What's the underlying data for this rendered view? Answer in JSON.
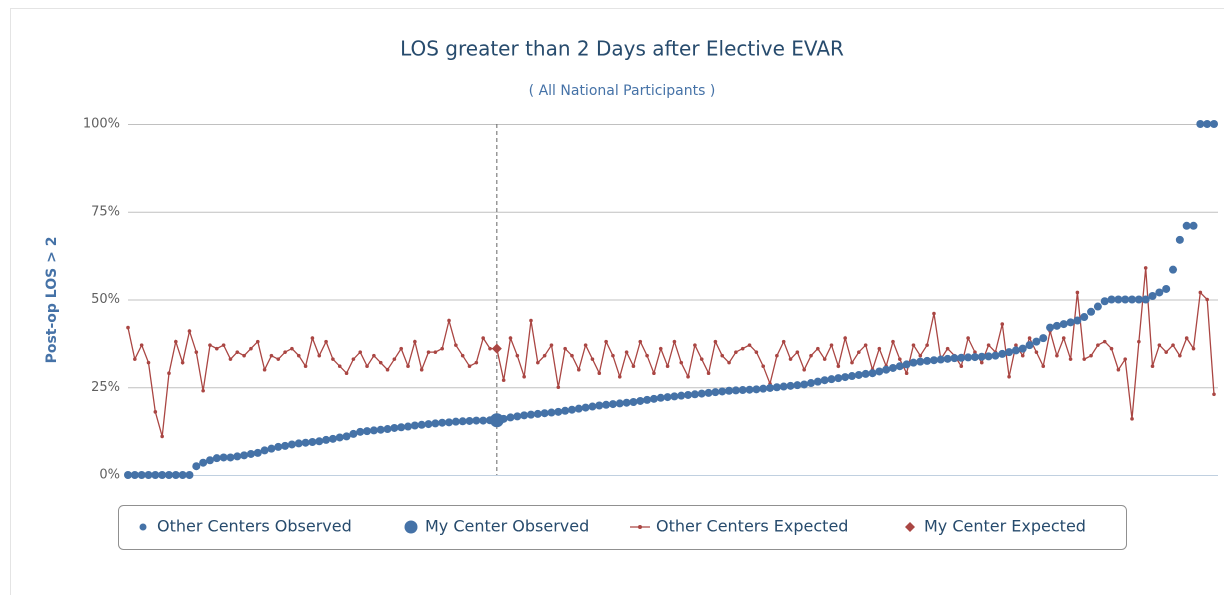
{
  "chart_data": {
    "type": "scatter-line",
    "title": "LOS greater than 2 Days after Elective EVAR",
    "subtitle": "( All National Participants )",
    "y_axis_label": "Post-op LOS > 2",
    "categories": [
      null,
      null,
      null,
      null,
      null,
      null,
      null,
      null,
      null,
      null,
      null,
      null,
      null,
      null,
      null,
      null,
      null,
      null,
      null,
      null,
      null,
      null,
      null,
      null,
      null,
      null,
      null,
      null,
      null,
      null,
      null,
      null,
      null,
      null,
      null,
      null,
      null,
      null,
      null,
      null,
      null,
      null,
      null,
      null,
      null,
      null,
      null,
      null,
      null,
      null,
      null,
      null,
      null,
      null,
      null,
      null,
      null,
      null,
      null,
      null,
      null,
      null,
      null,
      null,
      null,
      null,
      null,
      null,
      null,
      null,
      null,
      null,
      null,
      null,
      null,
      null,
      null,
      null,
      null,
      null,
      null,
      null,
      null,
      null,
      null,
      null,
      null,
      null,
      null,
      null,
      null,
      null,
      null,
      null,
      null,
      null,
      null,
      null,
      null,
      null,
      null,
      null,
      null,
      null,
      null,
      null,
      null,
      null,
      null,
      null,
      null,
      null,
      null,
      null,
      null,
      null,
      null,
      null,
      null,
      null,
      null,
      null,
      null,
      null,
      null,
      null,
      null,
      null,
      null,
      null,
      null,
      null,
      null,
      null,
      null,
      null,
      null,
      null,
      null,
      null,
      null,
      null,
      null,
      null,
      null,
      null,
      null,
      null,
      null,
      null,
      null,
      null,
      null,
      null,
      null,
      null,
      null,
      null,
      null,
      null
    ],
    "ylim": [
      0,
      100
    ],
    "yticks": [
      {
        "value": 0,
        "label": "0%"
      },
      {
        "value": 25,
        "label": "25%"
      },
      {
        "value": 50,
        "label": "50%"
      },
      {
        "value": 75,
        "label": "75%"
      },
      {
        "value": 100,
        "label": "100%"
      }
    ],
    "grid": true,
    "legend": "bottom",
    "series": [
      {
        "name": "Other Centers Observed",
        "kind": "dots",
        "color": "#4572a7",
        "values": [
          0,
          0,
          0,
          0,
          0,
          0,
          0,
          0,
          0,
          0,
          2.5,
          3.5,
          4.2,
          4.8,
          5,
          5,
          5.3,
          5.6,
          6,
          6.3,
          7,
          7.5,
          8,
          8.3,
          8.7,
          9,
          9.2,
          9.4,
          9.6,
          10,
          10.3,
          10.7,
          11,
          11.7,
          12.3,
          12.5,
          12.7,
          12.9,
          13.1,
          13.4,
          13.6,
          13.8,
          14.1,
          14.3,
          14.5,
          14.7,
          14.9,
          15,
          15.2,
          15.3,
          15.4,
          15.5,
          15.5,
          15.6,
          null,
          16,
          16.4,
          16.7,
          17,
          17.2,
          17.4,
          17.6,
          17.8,
          18,
          18.3,
          18.6,
          18.9,
          19.2,
          19.5,
          19.8,
          20,
          20.2,
          20.4,
          20.6,
          20.8,
          21.1,
          21.4,
          21.7,
          22,
          22.2,
          22.4,
          22.6,
          22.8,
          23,
          23.2,
          23.4,
          23.6,
          23.8,
          24,
          24.1,
          24.2,
          24.3,
          24.4,
          24.6,
          24.8,
          25,
          25.2,
          25.4,
          25.6,
          25.8,
          26.2,
          26.6,
          27,
          27.3,
          27.6,
          27.9,
          28.2,
          28.5,
          28.8,
          29,
          29.5,
          30,
          30.5,
          31,
          31.5,
          32,
          32.3,
          32.5,
          32.7,
          32.9,
          33.1,
          33.3,
          33.4,
          33.5,
          33.6,
          33.7,
          33.8,
          34,
          34.5,
          35,
          35.5,
          36,
          37,
          38,
          39,
          42,
          42.5,
          43,
          43.5,
          44,
          45,
          46.5,
          48,
          49.5,
          50,
          50,
          50,
          50,
          50,
          50,
          51,
          52,
          53,
          58.5,
          67,
          71,
          71,
          100,
          100,
          100
        ]
      },
      {
        "name": "My Center Observed",
        "kind": "bigdot",
        "color": "#4572a7",
        "values": [
          null,
          null,
          null,
          null,
          null,
          null,
          null,
          null,
          null,
          null,
          null,
          null,
          null,
          null,
          null,
          null,
          null,
          null,
          null,
          null,
          null,
          null,
          null,
          null,
          null,
          null,
          null,
          null,
          null,
          null,
          null,
          null,
          null,
          null,
          null,
          null,
          null,
          null,
          null,
          null,
          null,
          null,
          null,
          null,
          null,
          null,
          null,
          null,
          null,
          null,
          null,
          null,
          null,
          null,
          15.6,
          null,
          null,
          null,
          null,
          null,
          null,
          null,
          null,
          null,
          null,
          null,
          null,
          null,
          null,
          null,
          null,
          null,
          null,
          null,
          null,
          null,
          null,
          null,
          null,
          null,
          null,
          null,
          null,
          null,
          null,
          null,
          null,
          null,
          null,
          null,
          null,
          null,
          null,
          null,
          null,
          null,
          null,
          null,
          null,
          null,
          null,
          null,
          null,
          null,
          null,
          null,
          null,
          null,
          null,
          null,
          null,
          null,
          null,
          null,
          null,
          null,
          null,
          null,
          null,
          null,
          null,
          null,
          null,
          null,
          null,
          null,
          null,
          null,
          null,
          null,
          null,
          null,
          null,
          null,
          null,
          null,
          null,
          null,
          null,
          null,
          null,
          null,
          null,
          null,
          null,
          null,
          null,
          null,
          null,
          null,
          null,
          null,
          null,
          null,
          null,
          null,
          null,
          null,
          null,
          null
        ]
      },
      {
        "name": "Other Centers Expected",
        "kind": "line",
        "color": "#aa4643",
        "values": [
          42,
          33,
          37,
          32,
          18,
          11,
          29,
          38,
          32,
          41,
          35,
          24,
          37,
          36,
          37,
          33,
          35,
          34,
          36,
          38,
          30,
          34,
          33,
          35,
          36,
          34,
          31,
          39,
          34,
          38,
          33,
          31,
          29,
          33,
          35,
          31,
          34,
          32,
          30,
          33,
          36,
          31,
          38,
          30,
          35,
          35,
          36,
          44,
          37,
          34,
          31,
          32,
          39,
          36,
          36,
          27,
          39,
          34,
          28,
          44,
          32,
          34,
          37,
          25,
          36,
          34,
          30,
          37,
          33,
          29,
          38,
          34,
          28,
          35,
          31,
          38,
          34,
          29,
          36,
          31,
          38,
          32,
          28,
          37,
          33,
          29,
          38,
          34,
          32,
          35,
          36,
          37,
          35,
          31,
          26,
          34,
          38,
          33,
          35,
          30,
          34,
          36,
          33,
          37,
          31,
          39,
          32,
          35,
          37,
          30,
          36,
          31,
          38,
          33,
          29,
          37,
          34,
          37,
          46,
          33,
          36,
          34,
          31,
          39,
          35,
          32,
          37,
          35,
          43,
          28,
          37,
          34,
          39,
          35,
          31,
          41,
          34,
          39,
          33,
          52,
          33,
          34,
          37,
          38,
          36,
          30,
          33,
          16,
          38,
          59,
          31,
          37,
          35,
          37,
          34,
          39,
          36,
          52,
          50,
          23
        ]
      },
      {
        "name": "My Center Expected",
        "kind": "diamond",
        "color": "#aa4643",
        "values": [
          null,
          null,
          null,
          null,
          null,
          null,
          null,
          null,
          null,
          null,
          null,
          null,
          null,
          null,
          null,
          null,
          null,
          null,
          null,
          null,
          null,
          null,
          null,
          null,
          null,
          null,
          null,
          null,
          null,
          null,
          null,
          null,
          null,
          null,
          null,
          null,
          null,
          null,
          null,
          null,
          null,
          null,
          null,
          null,
          null,
          null,
          null,
          null,
          null,
          null,
          null,
          null,
          null,
          null,
          36,
          null,
          null,
          null,
          null,
          null,
          null,
          null,
          null,
          null,
          null,
          null,
          null,
          null,
          null,
          null,
          null,
          null,
          null,
          null,
          null,
          null,
          null,
          null,
          null,
          null,
          null,
          null,
          null,
          null,
          null,
          null,
          null,
          null,
          null,
          null,
          null,
          null,
          null,
          null,
          null,
          null,
          null,
          null,
          null,
          null,
          null,
          null,
          null,
          null,
          null,
          null,
          null,
          null,
          null,
          null,
          null,
          null,
          null,
          null,
          null,
          null,
          null,
          null,
          null,
          null,
          null,
          null,
          null,
          null,
          null,
          null,
          null,
          null,
          null,
          null,
          null,
          null,
          null,
          null,
          null,
          null,
          null,
          null,
          null,
          null,
          null,
          null,
          null,
          null,
          null,
          null,
          null,
          null,
          null,
          null,
          null,
          null,
          null,
          null,
          null,
          null,
          null,
          null,
          null,
          null
        ]
      }
    ]
  }
}
